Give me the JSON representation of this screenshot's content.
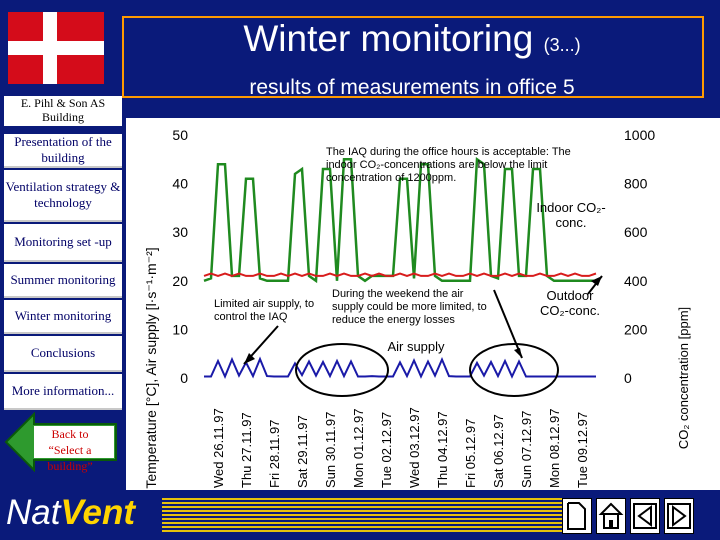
{
  "header": {
    "title": "Winter monitoring",
    "title_suffix": "(3...)",
    "subtitle": "results of measurements in office 5"
  },
  "sidebar": {
    "company": "E. Pihl & Son AS Building",
    "items": [
      {
        "label": "Presentation of the building"
      },
      {
        "label": "Ventilation strategy & technology"
      },
      {
        "label": "Monitoring set -up"
      },
      {
        "label": "Summer monitoring"
      },
      {
        "label": "Winter monitoring"
      },
      {
        "label": "Conclusions"
      },
      {
        "label": "More information..."
      }
    ],
    "back_label": "Back to “Select a building”"
  },
  "logo": {
    "part1": "Nat",
    "part2": "Vent"
  },
  "annotations": {
    "iaq": "The IAQ during the office hours is acceptable: The indoor CO₂-concentrations are below the limit concentration of 1200ppm.",
    "limited": "Limited air supply, to control the IAQ",
    "weekend": "During the weekend the air supply could be more limited, to reduce the energy losses",
    "indoor": "Indoor CO₂-conc.",
    "outdoor": "Outdoor CO₂-conc.",
    "air_supply": "Air supply"
  },
  "chart_data": {
    "type": "line",
    "ylabel_left": "Temperature [°C], Air supply [l·s⁻¹·m⁻²]",
    "ylabel_right": "CO₂ concentration [ppm]",
    "ylim_left": [
      0,
      50
    ],
    "yticks_left": [
      "0",
      "10",
      "20",
      "30",
      "40",
      "50"
    ],
    "ylim_right": [
      0,
      1000
    ],
    "yticks_right": [
      "0",
      "200",
      "400",
      "600",
      "800",
      "1000"
    ],
    "x_ticks": [
      "Wed 26.11.97",
      "Thu 27.11.97",
      "Fri 28.11.97",
      "Sat 29.11.97",
      "Sun 30.11.97",
      "Mon 01.12.97",
      "Tue 02.12.97",
      "Wed 03.12.97",
      "Thu 04.12.97",
      "Fri 05.12.97",
      "Sat 06.12.97",
      "Sun 07.12.97",
      "Mon 08.12.97",
      "Tue 09.12.97"
    ],
    "grid": false,
    "series": [
      {
        "color": "#1f8a1f",
        "values": [
          400,
          410,
          880,
          880,
          420,
          420,
          820,
          820,
          410,
          400,
          400,
          400,
          400,
          840,
          860,
          420,
          400,
          860,
          860,
          400,
          900,
          900,
          420,
          400,
          420,
          420,
          420,
          420,
          820,
          820,
          410,
          880,
          880,
          420,
          400,
          400,
          400,
          400,
          400,
          900,
          880,
          420,
          410,
          860,
          860,
          420,
          420,
          860,
          860,
          420,
          400,
          400,
          400,
          400,
          400,
          400,
          400
        ]
      },
      {
        "color": "#d81c1c",
        "values": [
          21,
          21.5,
          21,
          21.5,
          21,
          21.5,
          21,
          21,
          21.5,
          21,
          21,
          21.5,
          21,
          21.5,
          21,
          21.5,
          21,
          21,
          21.5,
          21,
          21.5,
          21,
          21,
          21.5,
          21,
          21.5,
          21,
          21,
          21.5,
          21,
          21.5,
          21,
          21,
          21.5,
          21,
          21.5,
          21,
          21,
          21.5,
          21,
          21.5,
          21,
          21,
          21.5,
          21,
          21.5,
          21,
          21,
          21.5,
          21,
          21,
          21.5,
          21,
          21.5,
          21,
          21,
          21.5
        ]
      },
      {
        "color": "#1a1aa8",
        "values": [
          0.3,
          0.3,
          3.5,
          0.3,
          3.8,
          0.5,
          3.2,
          0.4,
          3.9,
          0.4,
          0.3,
          0.3,
          0.3,
          3.0,
          0.6,
          3.4,
          0.5,
          3.3,
          0.4,
          3.5,
          0.4,
          3.4,
          0.3,
          0.3,
          0.4,
          0.3,
          0.3,
          0.3,
          3.2,
          0.4,
          3.6,
          0.3,
          3.4,
          0.5,
          3.8,
          0.4,
          0.3,
          0.3,
          0.3,
          3.1,
          0.5,
          3.3,
          0.4,
          3.5,
          0.3,
          3.4,
          0.3,
          0.3,
          0.3,
          0.3,
          0.3,
          0.3,
          0.3,
          0.3,
          0.3,
          0.3,
          0.3
        ]
      }
    ]
  }
}
